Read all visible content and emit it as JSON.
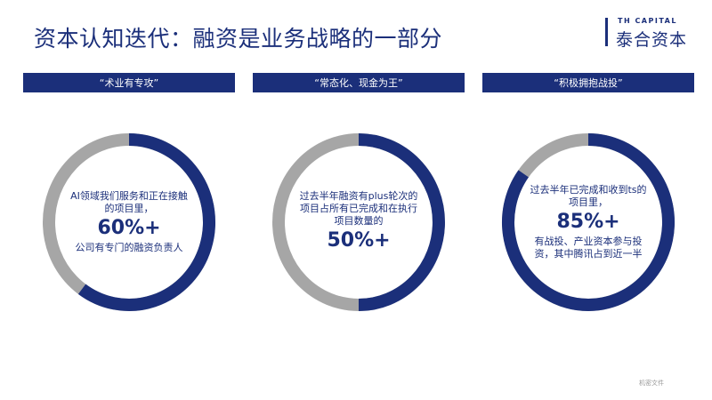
{
  "title": "资本认知迭代：融资是业务战略的一部分",
  "logo": {
    "top_text": "TH CAPITAL",
    "main_text": "泰合资本"
  },
  "colors": {
    "primary": "#1b2f7a",
    "secondary": "#a6a6a6"
  },
  "columns": [
    {
      "banner": "“术业有专攻”",
      "pre_text": "AI领域我们服务和正在接触的项目里，",
      "highlight": "60%+",
      "post_text": "公司有专门的融资负责人",
      "percent": 60
    },
    {
      "banner": "“常态化、现金为王”",
      "pre_text": "过去半年融资有plus轮次的项目占所有已完成和在执行项目数量的",
      "highlight": "50%+",
      "post_text": "",
      "percent": 50
    },
    {
      "banner": "“积极拥抱战投”",
      "pre_text": "过去半年已完成和收到ts的项目里，",
      "highlight": "85%+",
      "post_text": "有战投、产业资本参与投资，其中腾讯占到近一半",
      "percent": 85
    }
  ],
  "footer": "机密文件"
}
